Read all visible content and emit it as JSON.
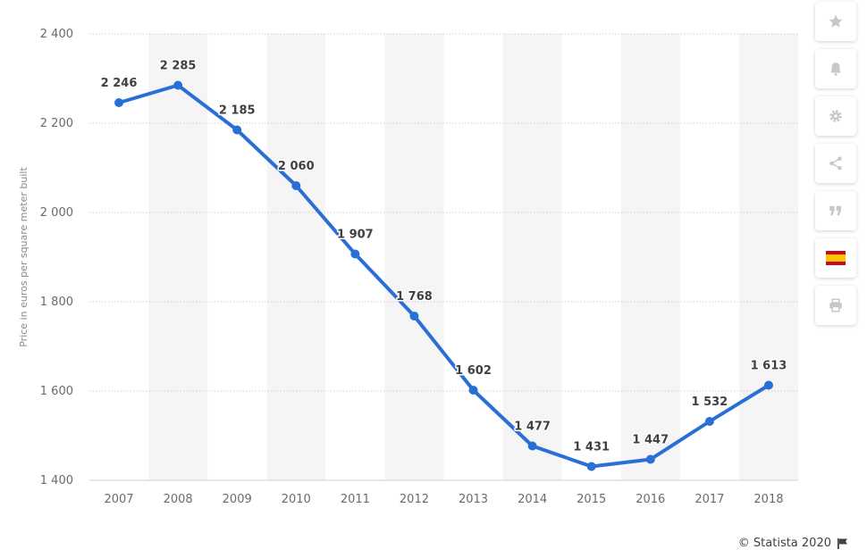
{
  "chart_data": {
    "type": "line",
    "title": "",
    "xlabel": "",
    "ylabel": "Price in euros per square meter built",
    "categories": [
      "2007",
      "2008",
      "2009",
      "2010",
      "2011",
      "2012",
      "2013",
      "2014",
      "2015",
      "2016",
      "2017",
      "2018"
    ],
    "series": [
      {
        "name": "Price in euros per square meter built",
        "values": [
          2246,
          2285,
          2185,
          2060,
          1907,
          1768,
          1602,
          1477,
          1431,
          1447,
          1532,
          1613
        ],
        "labels": [
          "2 246",
          "2 285",
          "2 185",
          "2 060",
          "1 907",
          "1 768",
          "1 602",
          "1 477",
          "1 431",
          "1 447",
          "1 532",
          "1 613"
        ]
      }
    ],
    "ylim": [
      1400,
      2400
    ],
    "yticks": [
      1400,
      1600,
      1800,
      2000,
      2200,
      2400
    ],
    "ytick_labels": [
      "1 400",
      "1 600",
      "1 800",
      "2 000",
      "2 200",
      "2 400"
    ],
    "grid": true,
    "legend": "none",
    "colors": {
      "line": "#2a6fd6",
      "grid": "#cfcfcf",
      "band": "#f5f5f5",
      "axis": "#d0d0d0"
    }
  },
  "toolbar": {
    "buttons": [
      {
        "name": "star-icon"
      },
      {
        "name": "bell-icon"
      },
      {
        "name": "gear-icon"
      },
      {
        "name": "share-icon"
      },
      {
        "name": "quote-icon"
      },
      {
        "name": "spain-flag-icon"
      },
      {
        "name": "print-icon"
      }
    ]
  },
  "credit": {
    "text": "© Statista 2020"
  }
}
